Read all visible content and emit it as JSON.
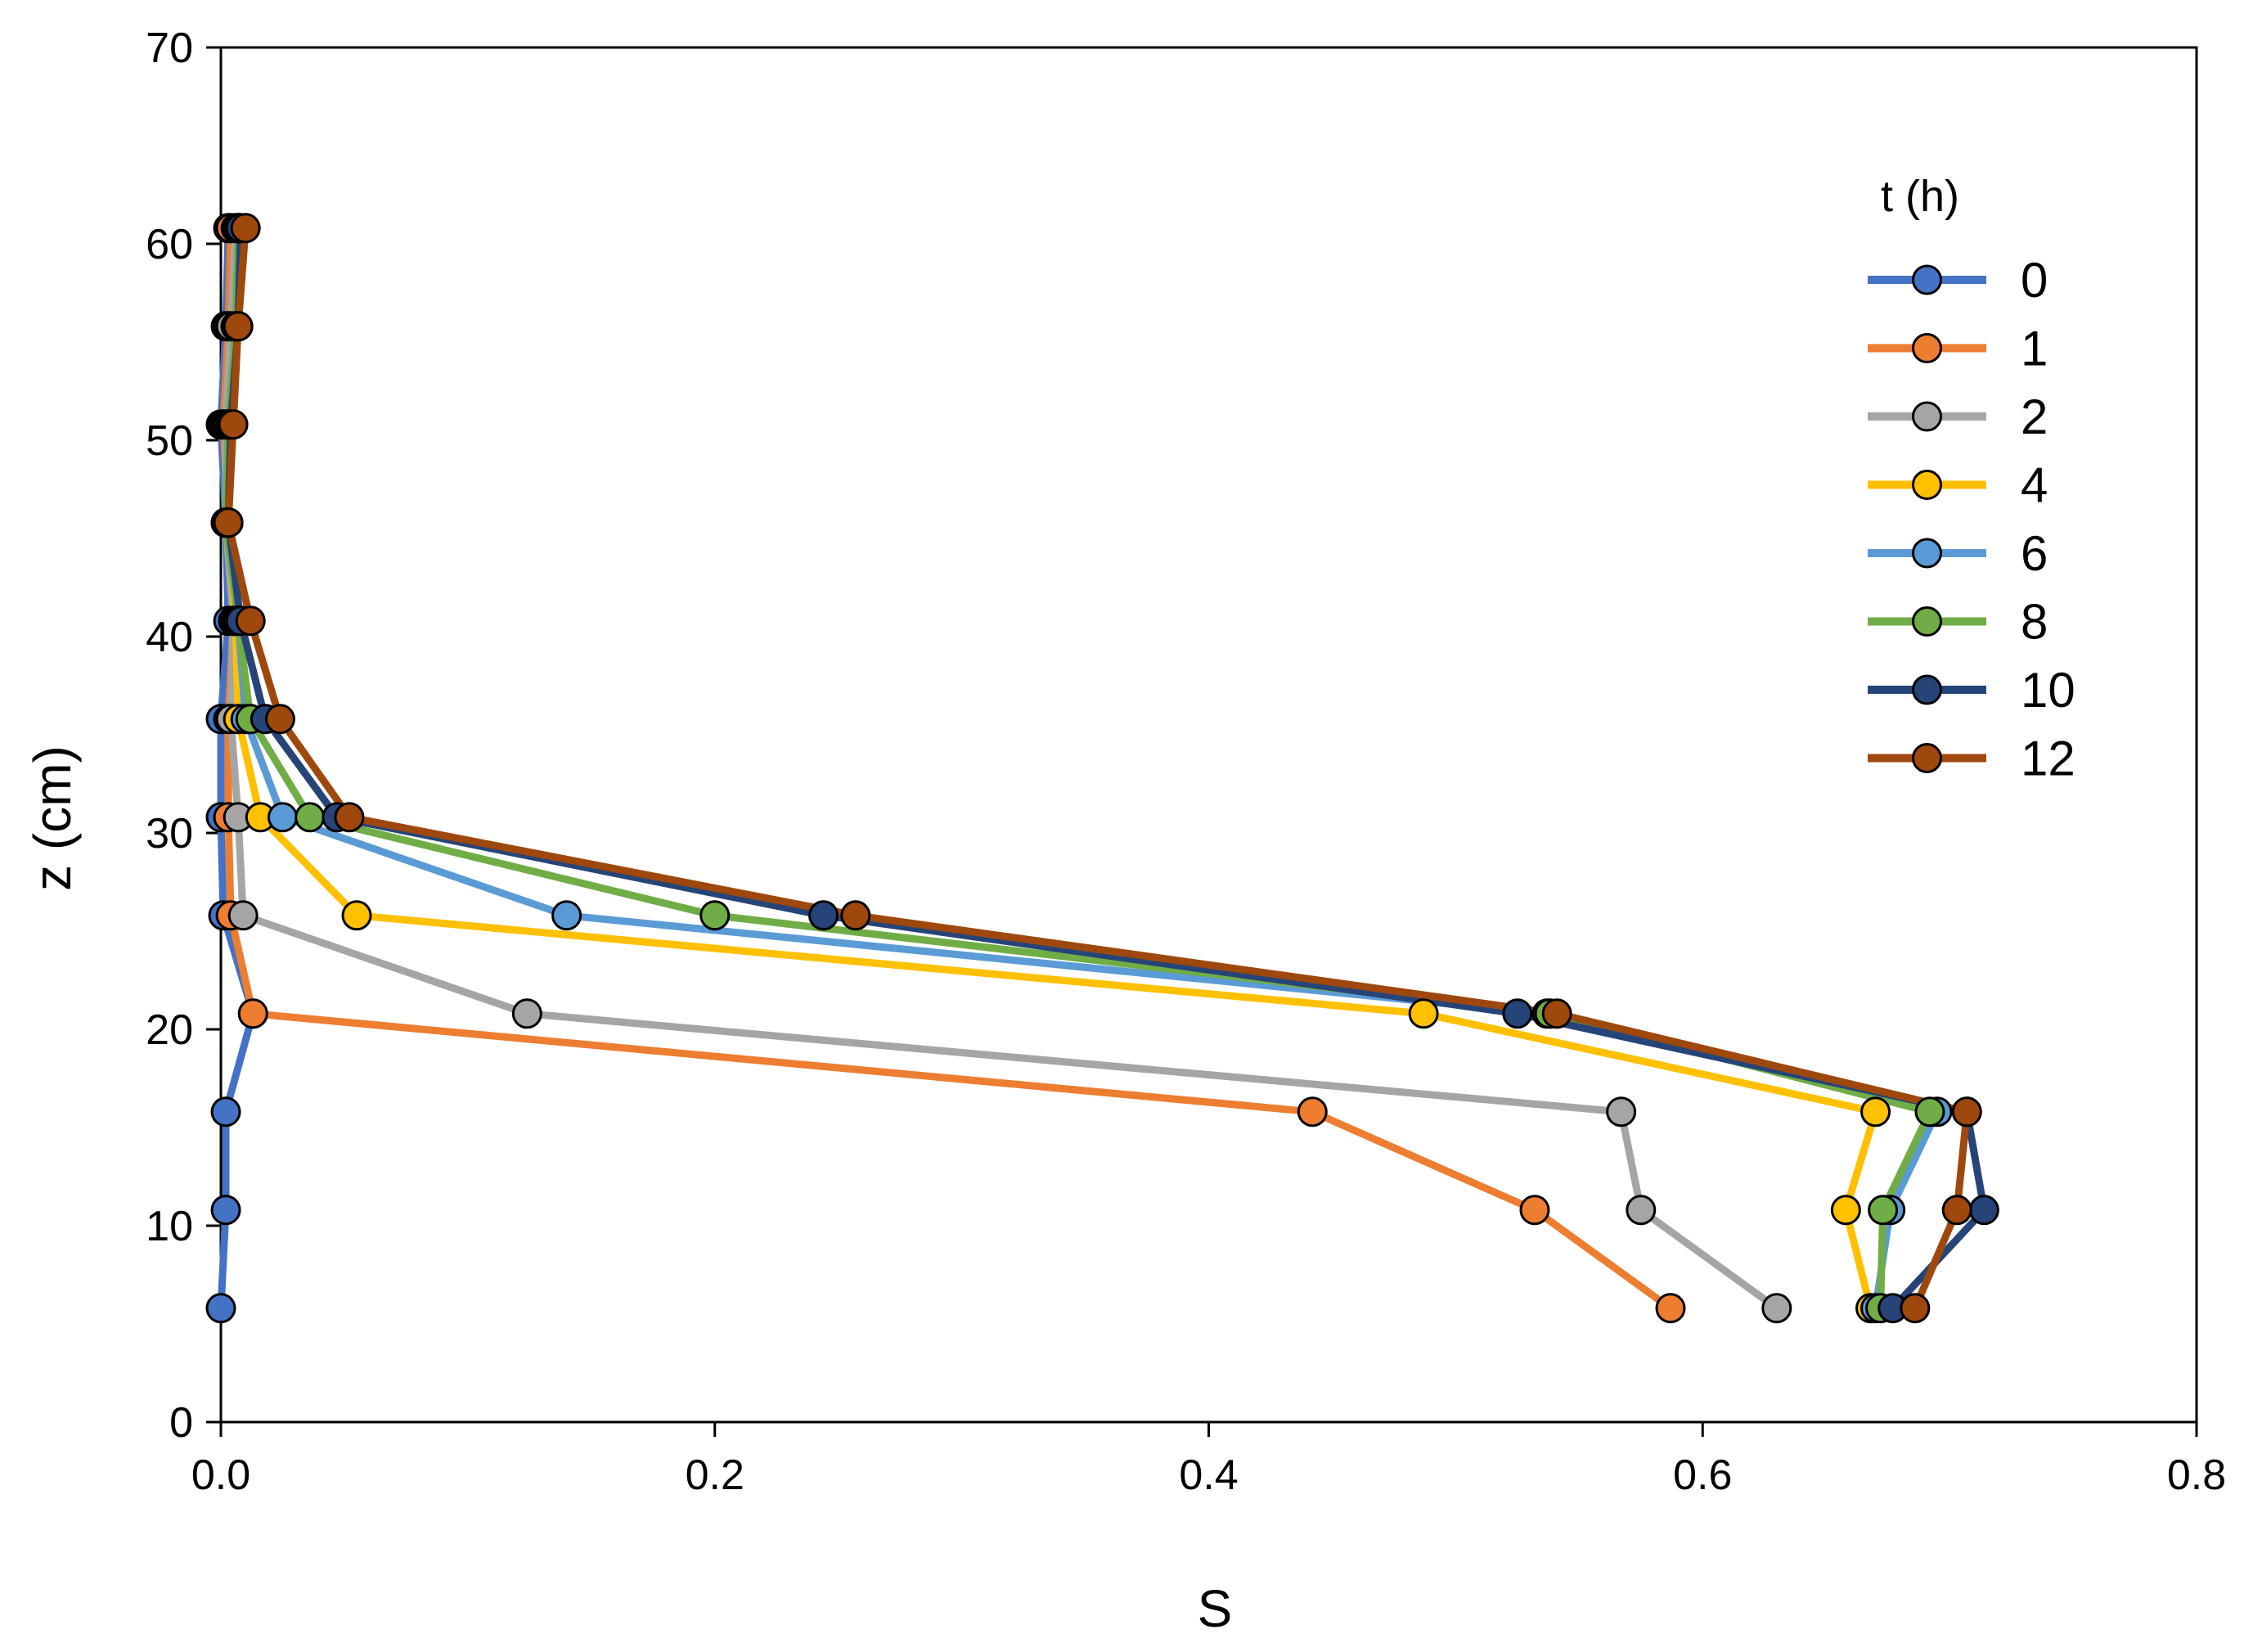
{
  "chart_data": {
    "type": "line",
    "xlabel": "S",
    "ylabel": "z (cm)",
    "xlim": [
      0.0,
      0.8
    ],
    "ylim": [
      0,
      70
    ],
    "x_ticks": [
      "0.0",
      "0.2",
      "0.4",
      "0.6",
      "0.8"
    ],
    "y_ticks": [
      "0",
      "10",
      "20",
      "30",
      "40",
      "50",
      "60",
      "70"
    ],
    "grid": false,
    "legend_title": "t (h)",
    "legend_position": "right",
    "z": [
      5.8,
      10.8,
      15.8,
      20.8,
      25.8,
      30.8,
      35.8,
      40.8,
      45.8,
      50.8,
      55.8,
      60.8
    ],
    "series": [
      {
        "name": "0",
        "color": "#4472C4",
        "x": [
          0.0,
          0.002,
          0.002,
          0.013,
          0.001,
          0.0,
          0.0,
          0.003,
          0.002,
          0.0,
          0.002,
          0.003
        ]
      },
      {
        "name": "1",
        "color": "#ED7D31",
        "x": [
          0.587,
          0.532,
          0.442,
          0.013,
          0.004,
          0.003,
          0.003,
          0.005,
          0.003,
          0.001,
          0.003,
          0.004
        ]
      },
      {
        "name": "2",
        "color": "#A5A5A5",
        "x": [
          0.63,
          0.575,
          0.567,
          0.124,
          0.009,
          0.007,
          0.004,
          0.005,
          0.002,
          0.002,
          0.004,
          0.006
        ]
      },
      {
        "name": "4",
        "color": "#FFC000",
        "x": [
          0.668,
          0.658,
          0.67,
          0.487,
          0.055,
          0.016,
          0.007,
          0.006,
          0.003,
          0.003,
          0.006,
          0.007
        ]
      },
      {
        "name": "6",
        "color": "#5B9BD5",
        "x": [
          0.67,
          0.676,
          0.695,
          0.537,
          0.14,
          0.025,
          0.01,
          0.007,
          0.003,
          0.003,
          0.006,
          0.007
        ]
      },
      {
        "name": "8",
        "color": "#70AD47",
        "x": [
          0.672,
          0.673,
          0.692,
          0.538,
          0.2,
          0.036,
          0.012,
          0.007,
          0.002,
          0.003,
          0.006,
          0.007
        ]
      },
      {
        "name": "10",
        "color": "#264478",
        "x": [
          0.677,
          0.714,
          0.707,
          0.525,
          0.244,
          0.047,
          0.018,
          0.008,
          0.003,
          0.004,
          0.007,
          0.008
        ]
      },
      {
        "name": "12",
        "color": "#9E480E",
        "x": [
          0.686,
          0.703,
          0.707,
          0.541,
          0.257,
          0.052,
          0.024,
          0.012,
          0.003,
          0.005,
          0.007,
          0.01
        ]
      }
    ]
  }
}
